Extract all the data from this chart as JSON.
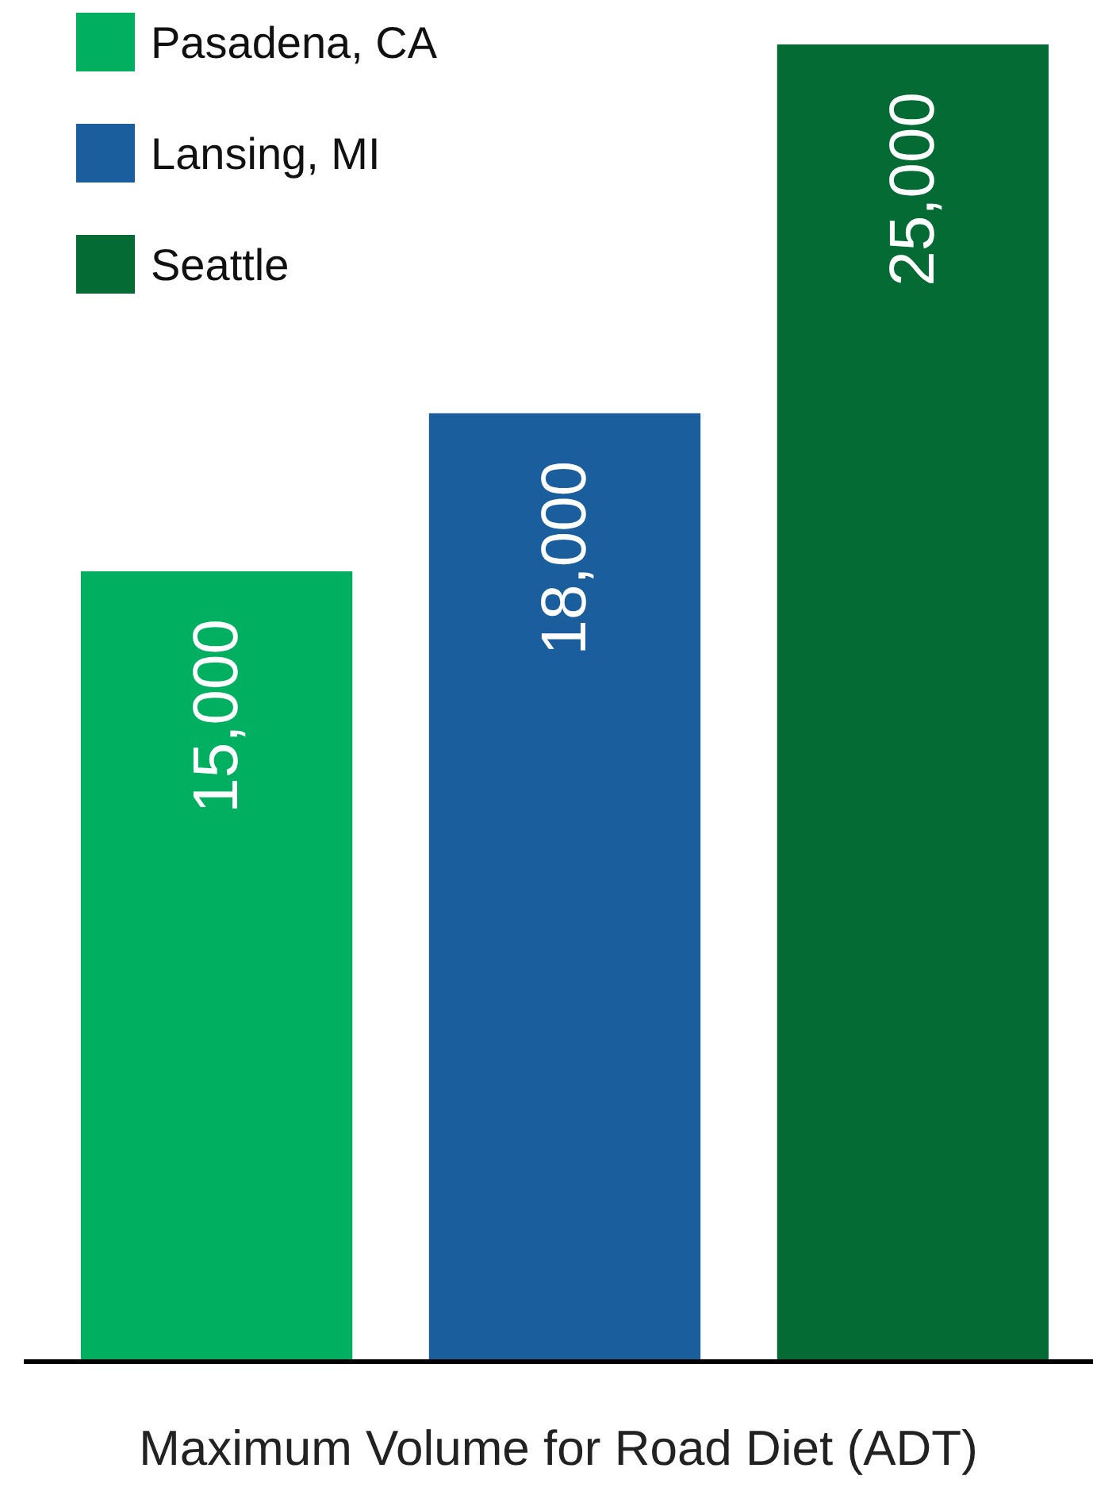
{
  "chart_data": {
    "type": "bar",
    "categories": [
      null,
      null,
      null
    ],
    "series": [
      {
        "name": "Pasadena, CA",
        "color": "#00b060",
        "values": [
          15000,
          null,
          null
        ],
        "value_labels": [
          "15,000",
          null,
          null
        ]
      },
      {
        "name": "Lansing, MI",
        "color": "#1a5e9e",
        "values": [
          null,
          18000,
          null
        ],
        "value_labels": [
          null,
          "18,000",
          null
        ]
      },
      {
        "name": "Seattle",
        "color": "#046b35",
        "values": [
          null,
          null,
          25000
        ],
        "value_labels": [
          null,
          null,
          "25,000"
        ]
      }
    ],
    "stacked": true,
    "xlabel": "Maximum Volume for Road Diet (ADT)",
    "legend": "top left"
  }
}
